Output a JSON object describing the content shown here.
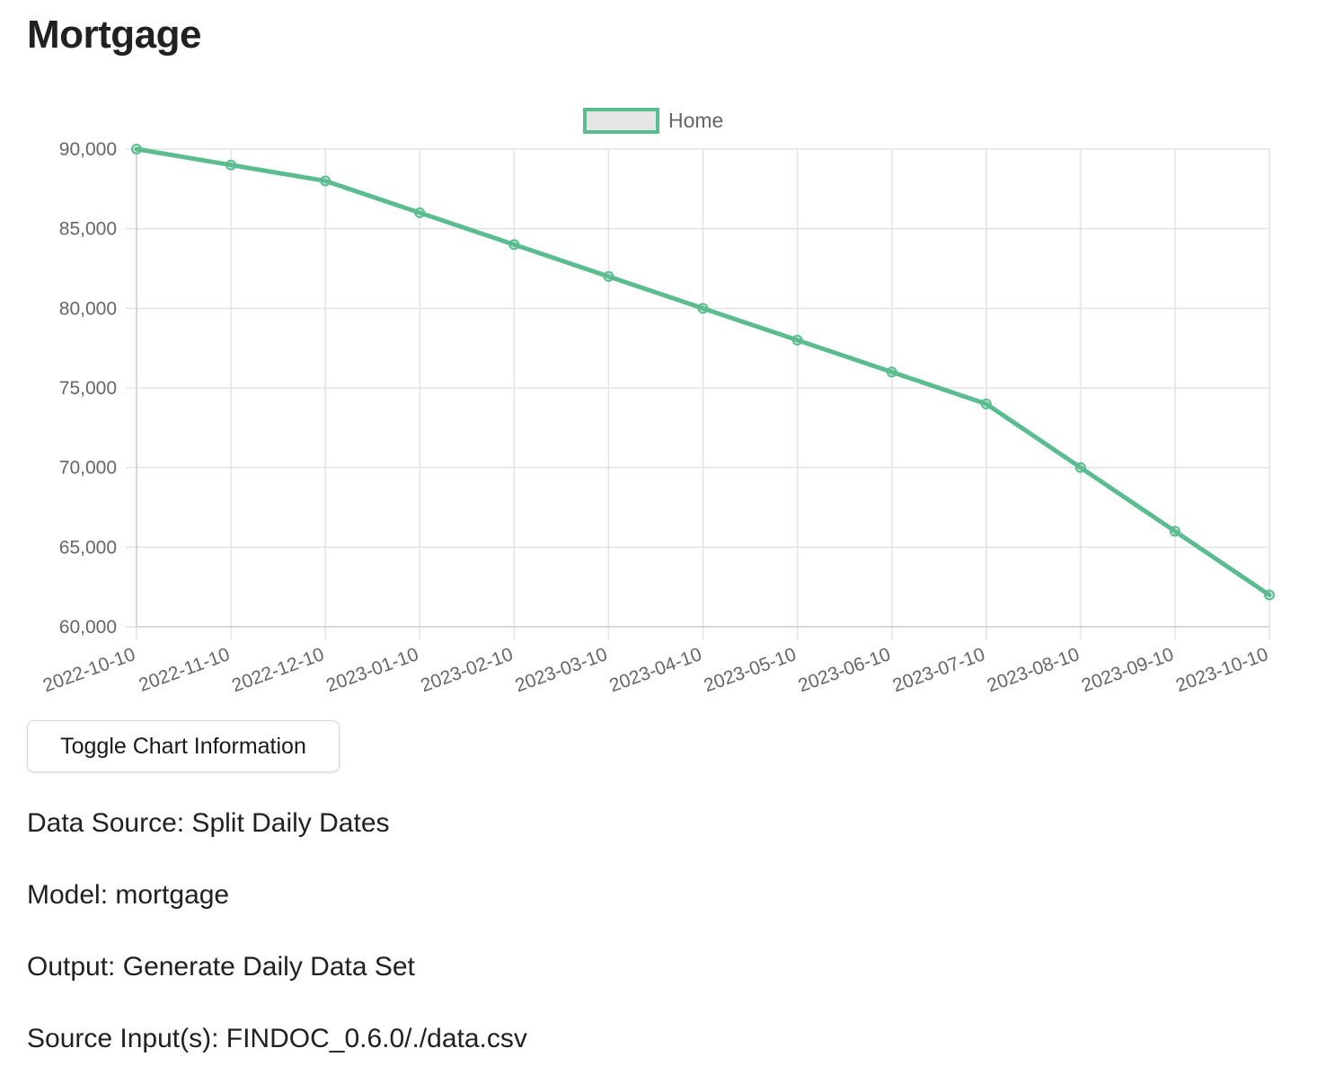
{
  "page": {
    "title": "Mortgage"
  },
  "chart_data": {
    "type": "line",
    "x": [
      "2022-10-10",
      "2022-11-10",
      "2022-12-10",
      "2023-01-10",
      "2023-02-10",
      "2023-03-10",
      "2023-04-10",
      "2023-05-10",
      "2023-06-10",
      "2023-07-10",
      "2023-08-10",
      "2023-09-10",
      "2023-10-10"
    ],
    "series": [
      {
        "name": "Home",
        "values": [
          90000,
          89000,
          88000,
          86000,
          84000,
          82000,
          80000,
          78000,
          76000,
          74000,
          70000,
          66000,
          62000
        ]
      }
    ],
    "yticks": [
      "60,000",
      "65,000",
      "70,000",
      "75,000",
      "80,000",
      "85,000",
      "90,000"
    ],
    "ylim": [
      60000,
      90000
    ],
    "title": "",
    "xlabel": "",
    "ylabel": "",
    "grid": true,
    "legend": "top-center",
    "colors": {
      "line": "#5bbd8f",
      "legend_fill": "#e6e6e6",
      "grid": "#e3e3e3",
      "tick_text": "#666666"
    }
  },
  "controls": {
    "toggle_label": "Toggle Chart Information"
  },
  "info": {
    "data_source": "Data Source: Split Daily Dates",
    "model": "Model: mortgage",
    "output": "Output: Generate Daily Data Set",
    "source_inputs": "Source Input(s): FINDOC_0.6.0/./data.csv"
  }
}
